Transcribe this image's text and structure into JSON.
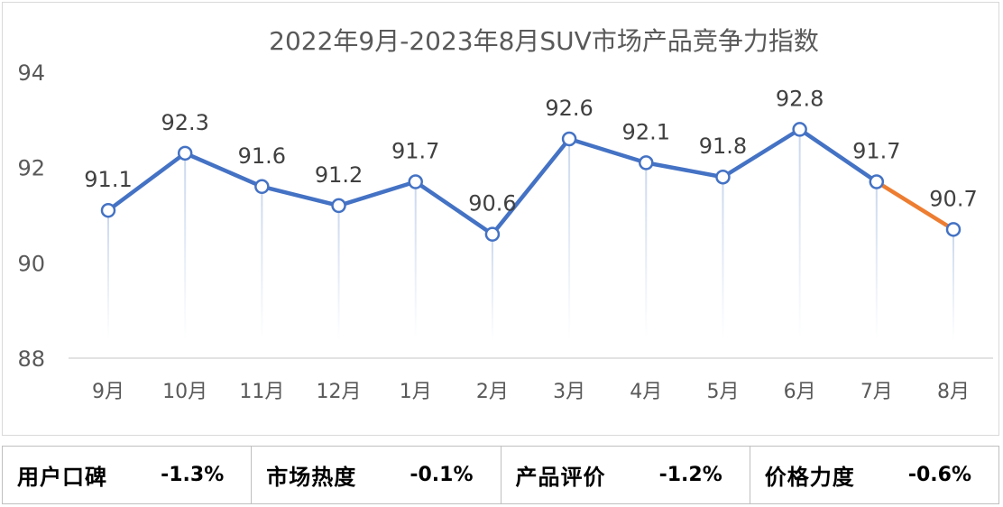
{
  "chart_data": {
    "type": "line",
    "title": "2022年9月-2023年8月SUV市场产品竞争力指数",
    "categories": [
      "9月",
      "10月",
      "11月",
      "12月",
      "1月",
      "2月",
      "3月",
      "4月",
      "5月",
      "6月",
      "7月",
      "8月"
    ],
    "series": [
      {
        "values": [
          91.1,
          92.3,
          91.6,
          91.2,
          91.7,
          90.6,
          92.6,
          92.1,
          91.8,
          92.8,
          91.7,
          90.7
        ]
      }
    ],
    "ylim": [
      88,
      94
    ],
    "yticks": [
      88,
      90,
      92,
      94
    ],
    "data_labels": true,
    "grid": false,
    "colors": {
      "line": "#4472c4",
      "last_segment": "#ed7d31",
      "drop_line": "#c9d7ee"
    }
  },
  "metrics": [
    {
      "label": "用户口碑",
      "value": "-1.3%"
    },
    {
      "label": "市场热度",
      "value": "-0.1%"
    },
    {
      "label": "产品评价",
      "value": "-1.2%"
    },
    {
      "label": "价格力度",
      "value": "-0.6%"
    }
  ]
}
